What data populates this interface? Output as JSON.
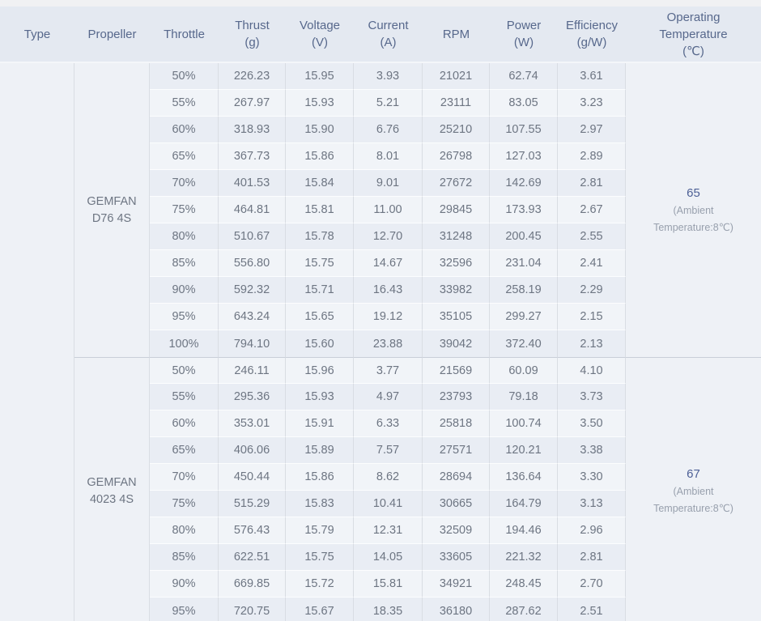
{
  "page": {
    "background": "#f0f1f3"
  },
  "table": {
    "columns": [
      {
        "id": "type",
        "label": "Type"
      },
      {
        "id": "propeller",
        "label": "Propeller"
      },
      {
        "id": "throttle",
        "label": "Throttle"
      },
      {
        "id": "thrust",
        "label": "Thrust\n(g)"
      },
      {
        "id": "voltage",
        "label": "Voltage\n(V)"
      },
      {
        "id": "current",
        "label": "Current\n(A)"
      },
      {
        "id": "rpm",
        "label": "RPM"
      },
      {
        "id": "power",
        "label": "Power\n(W)"
      },
      {
        "id": "efficiency",
        "label": "Efficiency\n(g/W)"
      },
      {
        "id": "temperature",
        "label": "Operating\nTemperature\n(℃)"
      }
    ],
    "colors": {
      "header_bg": "#e4e9f1",
      "header_text": "#57688c",
      "row_dark": "#e9edf4",
      "row_light": "#f1f4f8",
      "merged_bg": "#eef1f6",
      "body_text": "#6d7582",
      "temp_value_text": "#4c5f95",
      "temp_note_text": "#98a0ad",
      "v_border": "#d9dde3",
      "group_border": "#c9cfd8"
    }
  },
  "chart_data": {
    "type": "table",
    "title": "Propeller thrust test table",
    "columns": [
      "Type",
      "Propeller",
      "Throttle",
      "Thrust (g)",
      "Voltage (V)",
      "Current (A)",
      "RPM",
      "Power (W)",
      "Efficiency (g/W)",
      "Operating Temperature (℃)"
    ],
    "groups": [
      {
        "type": "",
        "propeller": "GEMFAN\nD76  4S",
        "operating_temperature": {
          "value": "65",
          "note": "(Ambient\nTemperature:8℃)"
        },
        "rows": [
          {
            "throttle": "50%",
            "thrust": "226.23",
            "voltage": "15.95",
            "current": "3.93",
            "rpm": "21021",
            "power": "62.74",
            "efficiency": "3.61"
          },
          {
            "throttle": "55%",
            "thrust": "267.97",
            "voltage": "15.93",
            "current": "5.21",
            "rpm": "23111",
            "power": "83.05",
            "efficiency": "3.23"
          },
          {
            "throttle": "60%",
            "thrust": "318.93",
            "voltage": "15.90",
            "current": "6.76",
            "rpm": "25210",
            "power": "107.55",
            "efficiency": "2.97"
          },
          {
            "throttle": "65%",
            "thrust": "367.73",
            "voltage": "15.86",
            "current": "8.01",
            "rpm": "26798",
            "power": "127.03",
            "efficiency": "2.89"
          },
          {
            "throttle": "70%",
            "thrust": "401.53",
            "voltage": "15.84",
            "current": "9.01",
            "rpm": "27672",
            "power": "142.69",
            "efficiency": "2.81"
          },
          {
            "throttle": "75%",
            "thrust": "464.81",
            "voltage": "15.81",
            "current": "11.00",
            "rpm": "29845",
            "power": "173.93",
            "efficiency": "2.67"
          },
          {
            "throttle": "80%",
            "thrust": "510.67",
            "voltage": "15.78",
            "current": "12.70",
            "rpm": "31248",
            "power": "200.45",
            "efficiency": "2.55"
          },
          {
            "throttle": "85%",
            "thrust": "556.80",
            "voltage": "15.75",
            "current": "14.67",
            "rpm": "32596",
            "power": "231.04",
            "efficiency": "2.41"
          },
          {
            "throttle": "90%",
            "thrust": "592.32",
            "voltage": "15.71",
            "current": "16.43",
            "rpm": "33982",
            "power": "258.19",
            "efficiency": "2.29"
          },
          {
            "throttle": "95%",
            "thrust": "643.24",
            "voltage": "15.65",
            "current": "19.12",
            "rpm": "35105",
            "power": "299.27",
            "efficiency": "2.15"
          },
          {
            "throttle": "100%",
            "thrust": "794.10",
            "voltage": "15.60",
            "current": "23.88",
            "rpm": "39042",
            "power": "372.40",
            "efficiency": "2.13"
          }
        ]
      },
      {
        "type": "",
        "propeller": "GEMFAN\n4023 4S",
        "operating_temperature": {
          "value": "67",
          "note": "(Ambient\nTemperature:8℃)"
        },
        "rows": [
          {
            "throttle": "50%",
            "thrust": "246.11",
            "voltage": "15.96",
            "current": "3.77",
            "rpm": "21569",
            "power": "60.09",
            "efficiency": "4.10"
          },
          {
            "throttle": "55%",
            "thrust": "295.36",
            "voltage": "15.93",
            "current": "4.97",
            "rpm": "23793",
            "power": "79.18",
            "efficiency": "3.73"
          },
          {
            "throttle": "60%",
            "thrust": "353.01",
            "voltage": "15.91",
            "current": "6.33",
            "rpm": "25818",
            "power": "100.74",
            "efficiency": "3.50"
          },
          {
            "throttle": "65%",
            "thrust": "406.06",
            "voltage": "15.89",
            "current": "7.57",
            "rpm": "27571",
            "power": "120.21",
            "efficiency": "3.38"
          },
          {
            "throttle": "70%",
            "thrust": "450.44",
            "voltage": "15.86",
            "current": "8.62",
            "rpm": "28694",
            "power": "136.64",
            "efficiency": "3.30"
          },
          {
            "throttle": "75%",
            "thrust": "515.29",
            "voltage": "15.83",
            "current": "10.41",
            "rpm": "30665",
            "power": "164.79",
            "efficiency": "3.13"
          },
          {
            "throttle": "80%",
            "thrust": "576.43",
            "voltage": "15.79",
            "current": "12.31",
            "rpm": "32509",
            "power": "194.46",
            "efficiency": "2.96"
          },
          {
            "throttle": "85%",
            "thrust": "622.51",
            "voltage": "15.75",
            "current": "14.05",
            "rpm": "33605",
            "power": "221.32",
            "efficiency": "2.81"
          },
          {
            "throttle": "90%",
            "thrust": "669.85",
            "voltage": "15.72",
            "current": "15.81",
            "rpm": "34921",
            "power": "248.45",
            "efficiency": "2.70"
          },
          {
            "throttle": "95%",
            "thrust": "720.75",
            "voltage": "15.67",
            "current": "18.35",
            "rpm": "36180",
            "power": "287.62",
            "efficiency": "2.51"
          }
        ]
      }
    ]
  }
}
